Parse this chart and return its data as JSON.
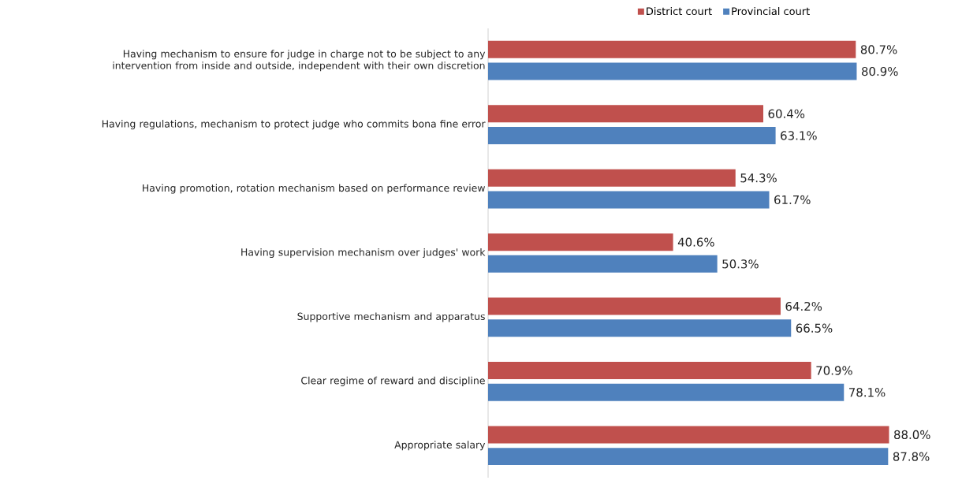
{
  "chart_data": {
    "type": "bar",
    "orientation": "horizontal",
    "legend": "top",
    "categories": [
      "Having mechanism to ensure for judge in charge not to be subject to any intervention from inside and outside, independent with their own discretion",
      "Having regulations, mechanism to protect judge who commits bona fine error",
      "Having promotion, rotation mechanism based on performance review",
      "Having supervision mechanism over judges' work",
      "Supportive mechanism and apparatus",
      "Clear regime of reward and discipline",
      "Appropriate salary"
    ],
    "series": [
      {
        "name": "District court",
        "color": "#c0504d",
        "values": [
          80.7,
          60.4,
          54.3,
          40.6,
          64.2,
          70.9,
          88.0
        ],
        "value_labels": [
          "80.7%",
          "60.4%",
          "54.3%",
          "40.6%",
          "64.2%",
          "70.9%",
          "88.0%"
        ]
      },
      {
        "name": "Provincial court",
        "color": "#4f81bd",
        "values": [
          80.9,
          63.1,
          61.7,
          50.3,
          66.5,
          78.1,
          87.8
        ],
        "value_labels": [
          "80.9%",
          "63.1%",
          "61.7%",
          "50.3%",
          "66.5%",
          "78.1%",
          "87.8%"
        ]
      }
    ]
  }
}
